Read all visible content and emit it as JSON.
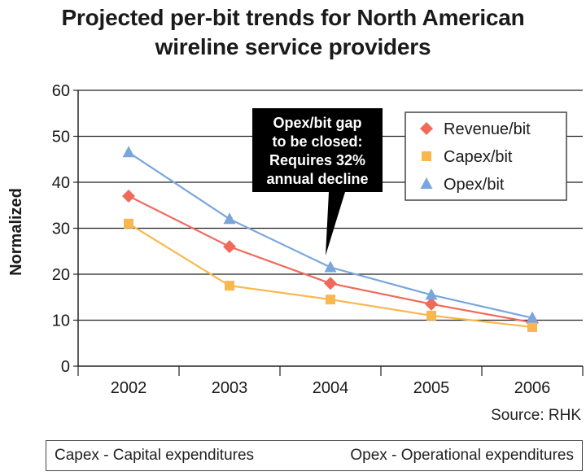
{
  "title_lines": [
    "Projected per-bit trends for North American",
    "wireline service providers"
  ],
  "source": "Source: RHK",
  "footnotes": [
    "Capex - Capital expenditures",
    "Opex - Operational expenditures"
  ],
  "callout_lines": [
    "Opex/bit gap",
    "to be closed:",
    "Requires 32%",
    "annual decline"
  ],
  "chart_data": {
    "type": "line",
    "title": "Projected per-bit trends for North American wireline service providers",
    "xlabel": "",
    "ylabel": "Normalized",
    "categories": [
      "2002",
      "2003",
      "2004",
      "2005",
      "2006"
    ],
    "ylim": [
      0,
      60
    ],
    "yticks": [
      0,
      10,
      20,
      30,
      40,
      50,
      60
    ],
    "grid": true,
    "legend_position": "top-right",
    "series": [
      {
        "name": "Revenue/bit",
        "values": [
          37,
          26,
          18,
          13.5,
          9.5
        ],
        "color": "#f06a5a",
        "marker": "diamond"
      },
      {
        "name": "Capex/bit",
        "values": [
          31,
          17.5,
          14.5,
          11,
          8.5
        ],
        "color": "#f8b84e",
        "marker": "square"
      },
      {
        "name": "Opex/bit",
        "values": [
          46.5,
          32,
          21.5,
          15.5,
          10.5
        ],
        "color": "#7aa6dc",
        "marker": "triangle"
      }
    ]
  }
}
